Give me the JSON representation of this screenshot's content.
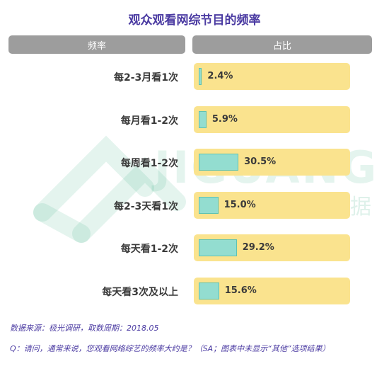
{
  "chart_data": {
    "type": "bar",
    "orientation": "horizontal",
    "title": "观众观看网综节目的频率",
    "column_headers": {
      "frequency": "频率",
      "share": "占比"
    },
    "categories": [
      "每2-3月看1次",
      "每月看1-2次",
      "每周看1-2次",
      "每2-3天看1次",
      "每天看1-2次",
      "每天看3次及以上"
    ],
    "values": [
      2.4,
      5.9,
      30.5,
      15.0,
      29.2,
      15.6
    ],
    "value_labels": [
      "2.4%",
      "5.9%",
      "30.5%",
      "15.0%",
      "29.2%",
      "15.6%"
    ],
    "unit": "%",
    "xlim": [
      0,
      100
    ],
    "grid": false,
    "legend": "none",
    "colors": {
      "bar": "#93ddd0",
      "row_background": "#fae38e",
      "header": "#9d9d9d",
      "title": "#4b3ba2"
    }
  },
  "watermark": {
    "brand": "JIGUANG",
    "subtitle": "极光大数据"
  },
  "notes": {
    "source": "数据来源：极光调研，取数周期：2018.05",
    "question": "Q：请问，通常来说，您观看网络综艺的频率大约是？（SA；图表中未显示“其他”选项结果）"
  }
}
